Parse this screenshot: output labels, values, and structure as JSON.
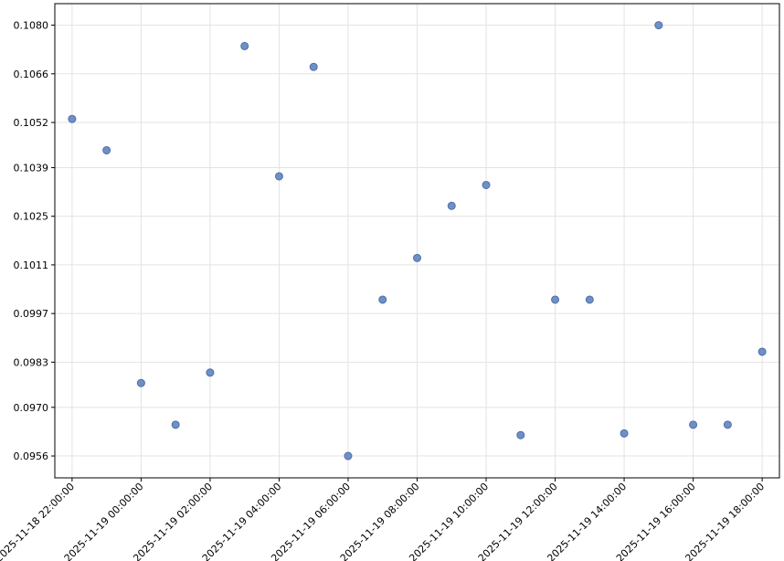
{
  "chart_data": {
    "type": "scatter",
    "title": "",
    "xlabel": "",
    "ylabel": "",
    "grid": true,
    "colors": {
      "point_fill": "#6f90c6",
      "point_edge": "#4c6fa6"
    },
    "x_tick_labels": [
      "2025-11-18 22:00:00",
      "2025-11-19 00:00:00",
      "2025-11-19 02:00:00",
      "2025-11-19 04:00:00",
      "2025-11-19 06:00:00",
      "2025-11-19 08:00:00",
      "2025-11-19 10:00:00",
      "2025-11-19 12:00:00",
      "2025-11-19 14:00:00",
      "2025-11-19 16:00:00",
      "2025-11-19 18:00:00"
    ],
    "y_tick_labels": [
      "0.0956",
      "0.0970",
      "0.0983",
      "0.0997",
      "0.1011",
      "0.1025",
      "0.1039",
      "0.1052",
      "0.1066",
      "0.1080"
    ],
    "xlim": [
      "2025-11-18 21:30:00",
      "2025-11-19 18:30:00"
    ],
    "ylim": [
      0.09497,
      0.10862
    ],
    "points": [
      {
        "x": "2025-11-18 22:00:00",
        "y": 0.1053
      },
      {
        "x": "2025-11-18 23:00:00",
        "y": 0.1044
      },
      {
        "x": "2025-11-19 00:00:00",
        "y": 0.0977
      },
      {
        "x": "2025-11-19 01:00:00",
        "y": 0.0965
      },
      {
        "x": "2025-11-19 02:00:00",
        "y": 0.098
      },
      {
        "x": "2025-11-19 03:00:00",
        "y": 0.1074
      },
      {
        "x": "2025-11-19 04:00:00",
        "y": 0.10365
      },
      {
        "x": "2025-11-19 05:00:00",
        "y": 0.1068
      },
      {
        "x": "2025-11-19 06:00:00",
        "y": 0.0956
      },
      {
        "x": "2025-11-19 07:00:00",
        "y": 0.1001
      },
      {
        "x": "2025-11-19 08:00:00",
        "y": 0.1013
      },
      {
        "x": "2025-11-19 09:00:00",
        "y": 0.1028
      },
      {
        "x": "2025-11-19 10:00:00",
        "y": 0.1034
      },
      {
        "x": "2025-11-19 11:00:00",
        "y": 0.0962
      },
      {
        "x": "2025-11-19 12:00:00",
        "y": 0.1001
      },
      {
        "x": "2025-11-19 13:00:00",
        "y": 0.1001
      },
      {
        "x": "2025-11-19 14:00:00",
        "y": 0.09625
      },
      {
        "x": "2025-11-19 15:00:00",
        "y": 0.108
      },
      {
        "x": "2025-11-19 16:00:00",
        "y": 0.0965
      },
      {
        "x": "2025-11-19 17:00:00",
        "y": 0.0965
      },
      {
        "x": "2025-11-19 18:00:00",
        "y": 0.0986
      }
    ]
  }
}
